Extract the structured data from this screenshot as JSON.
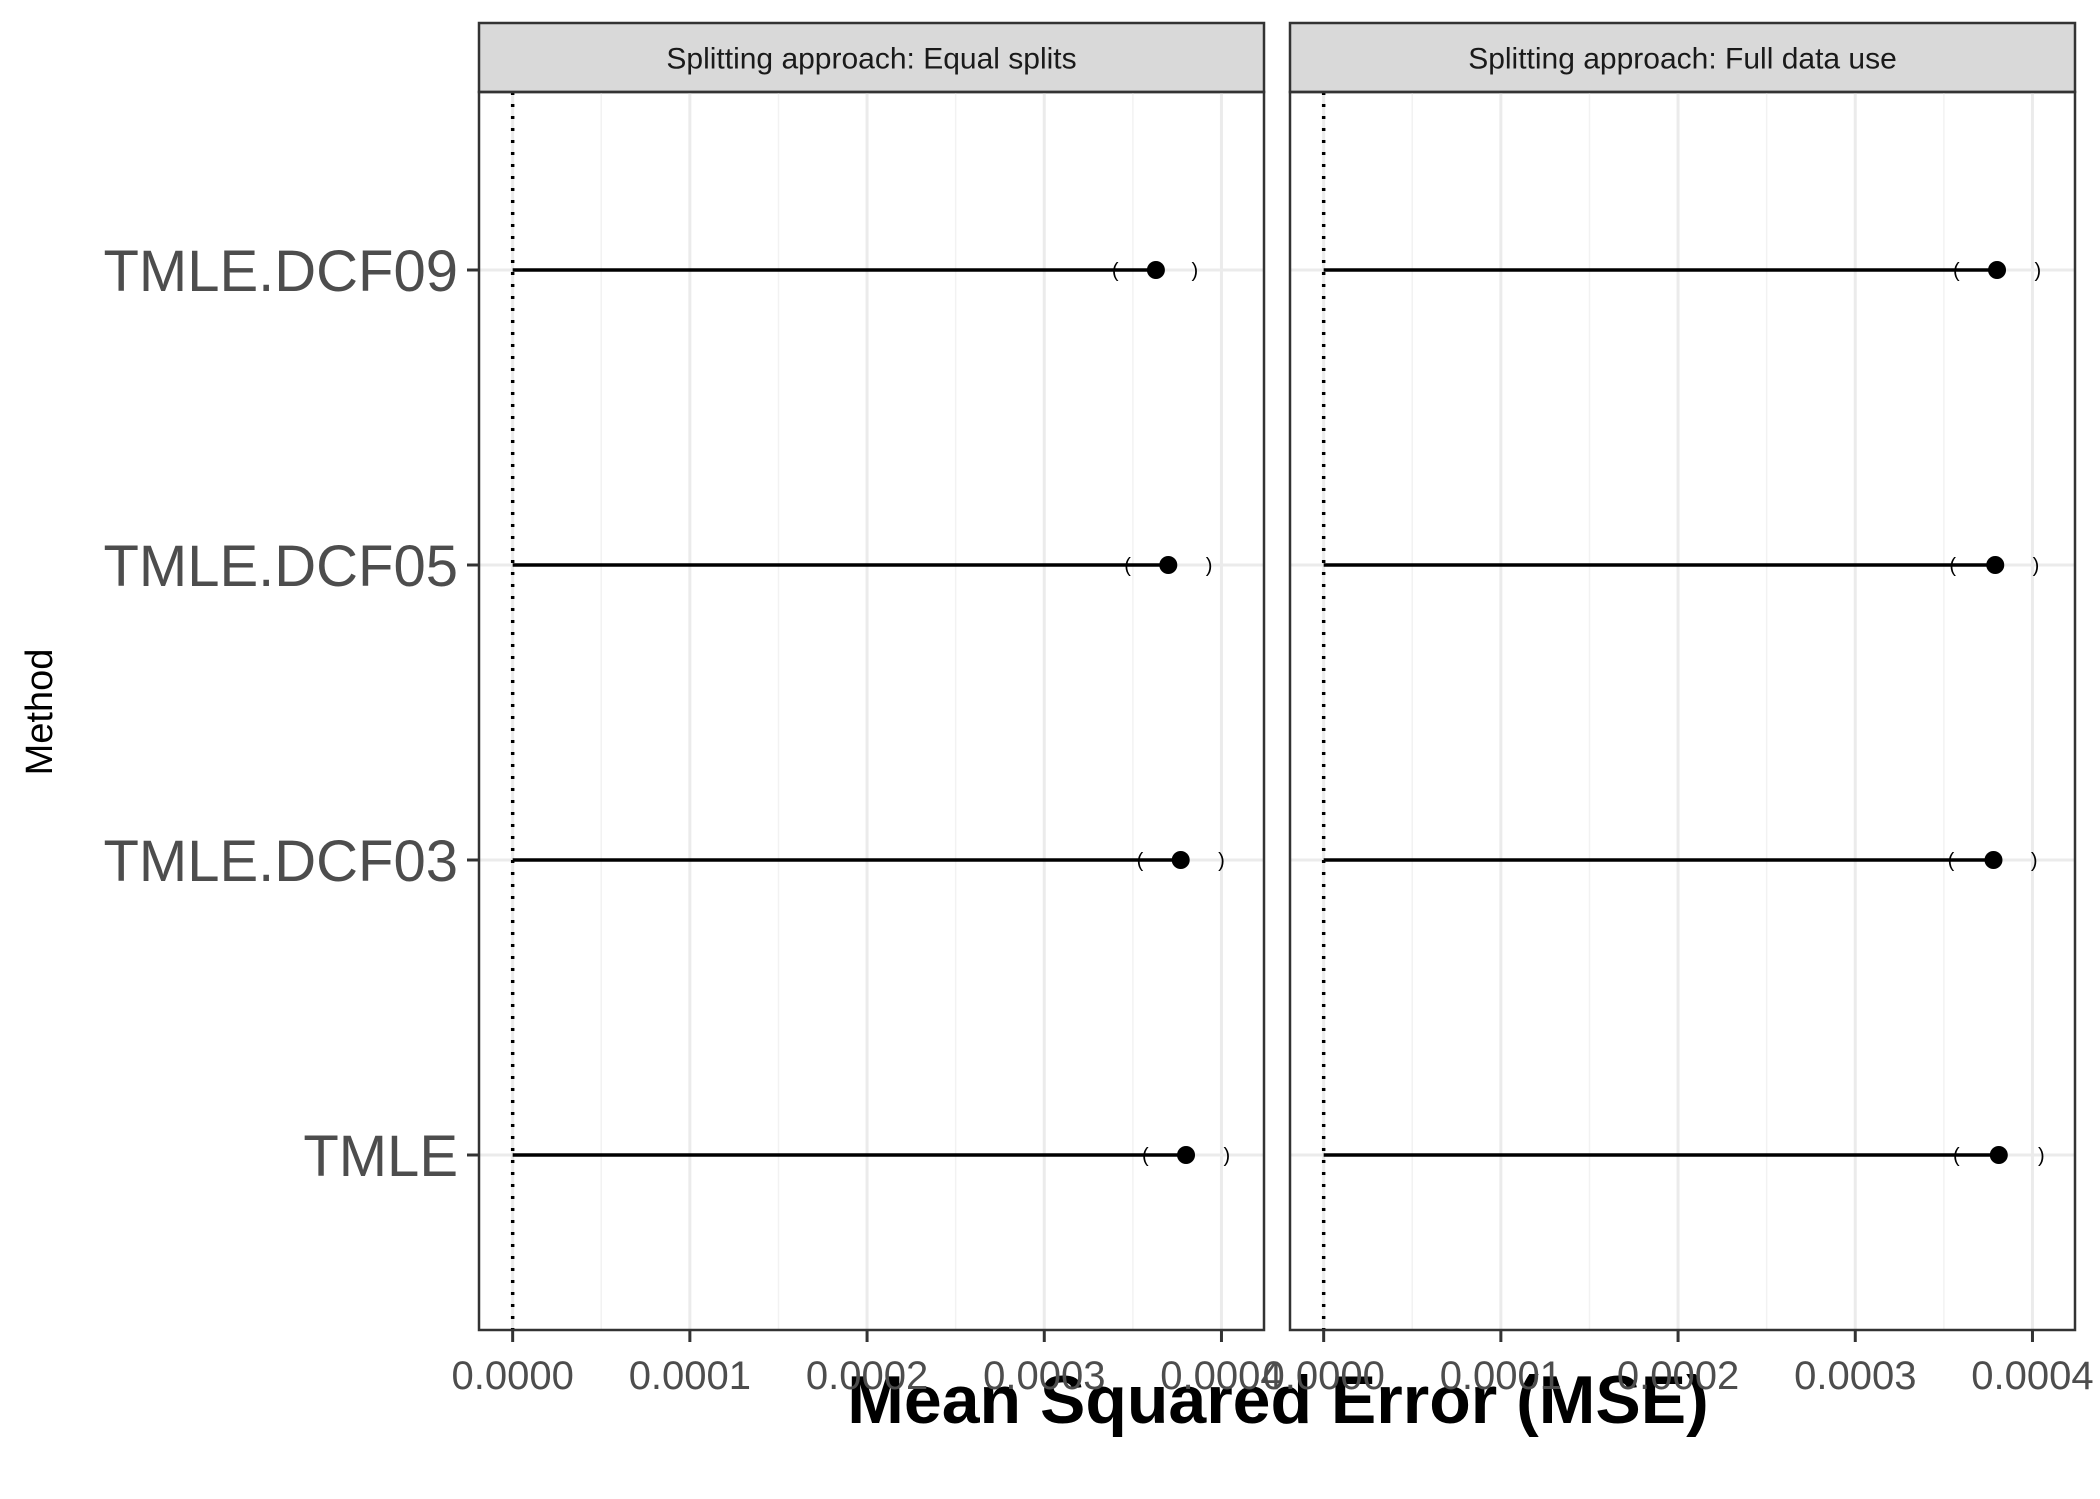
{
  "chart_data": {
    "type": "dot-interval",
    "xlabel": "Mean Squared Error (MSE)",
    "ylabel": "Method",
    "categories": [
      "TMLE",
      "TMLE.DCF03",
      "TMLE.DCF05",
      "TMLE.DCF09"
    ],
    "x_ticks": [
      "0.0000",
      "0.0001",
      "0.0002",
      "0.0003",
      "0.0004"
    ],
    "xlim": [
      -1.9e-05,
      0.000424
    ],
    "reference_line_x": 0,
    "grid": true,
    "panels": [
      {
        "strip": "Splitting approach: Equal splits",
        "points": [
          {
            "method": "TMLE",
            "value": 0.00038,
            "lower": 0.000357,
            "upper": 0.000403
          },
          {
            "method": "TMLE.DCF03",
            "value": 0.000377,
            "lower": 0.000354,
            "upper": 0.0004
          },
          {
            "method": "TMLE.DCF05",
            "value": 0.00037,
            "lower": 0.000347,
            "upper": 0.000393
          },
          {
            "method": "TMLE.DCF09",
            "value": 0.000363,
            "lower": 0.00034,
            "upper": 0.000385
          }
        ]
      },
      {
        "strip": "Splitting approach: Full data use",
        "points": [
          {
            "method": "TMLE",
            "value": 0.000381,
            "lower": 0.000357,
            "upper": 0.000405
          },
          {
            "method": "TMLE.DCF03",
            "value": 0.000378,
            "lower": 0.000354,
            "upper": 0.000401
          },
          {
            "method": "TMLE.DCF05",
            "value": 0.000379,
            "lower": 0.000355,
            "upper": 0.000402
          },
          {
            "method": "TMLE.DCF09",
            "value": 0.00038,
            "lower": 0.000357,
            "upper": 0.000403
          }
        ]
      }
    ]
  }
}
